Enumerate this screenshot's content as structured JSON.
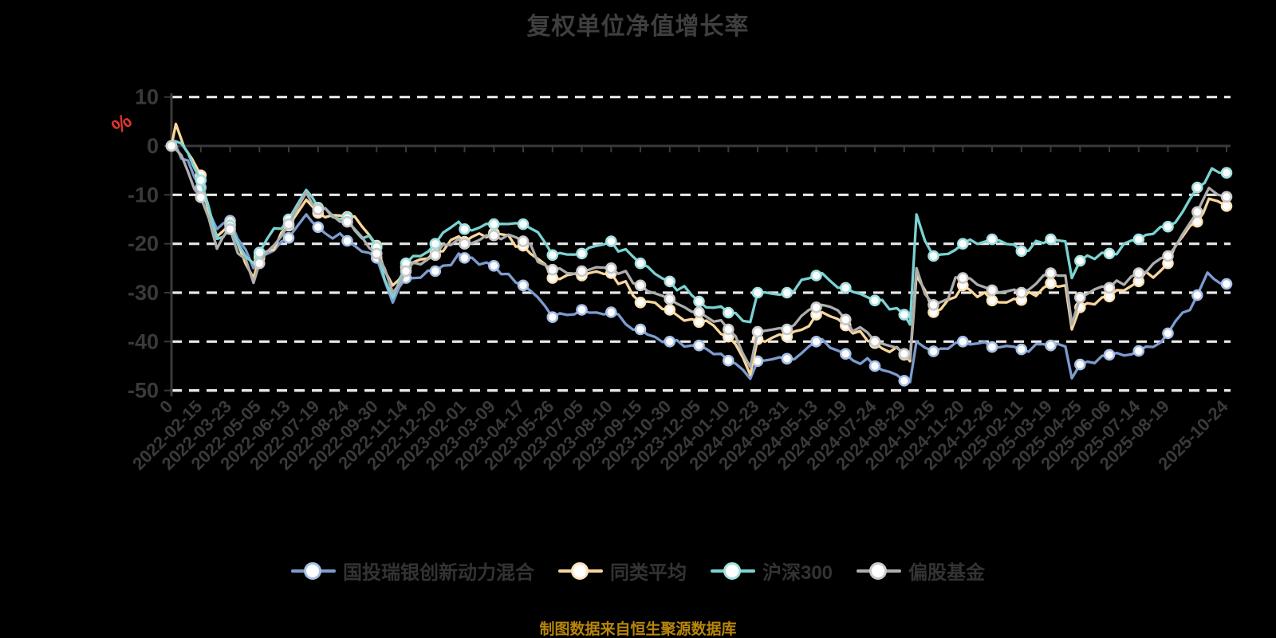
{
  "title": "复权单位净值增长率",
  "footer": "制图数据来自恒生聚源数据库",
  "colors": {
    "background": "#000000",
    "title_text": "#3f3f3f",
    "legend_text": "#333333",
    "footer_text": "#b8860b",
    "axis_text": "#3a3a3a",
    "unit_label": "#e5342e"
  },
  "chart_data": {
    "type": "line",
    "title": "复权单位净值增长率",
    "ylabel": "%",
    "ylim": [
      -50,
      10
    ],
    "y_ticks": [
      10,
      0,
      -10,
      -20,
      -30,
      -40,
      -50
    ],
    "grid": "horizontal dashed",
    "legend_position": "bottom",
    "colors": {
      "grid": "#e8e8e8",
      "axis": "#3a3a3a"
    },
    "x_labels": [
      "0",
      "2022-02-15",
      "2022-03-23",
      "2022-05-05",
      "2022-06-13",
      "2022-07-19",
      "2022-08-24",
      "2022-09-30",
      "2022-11-14",
      "2022-12-20",
      "2023-02-01",
      "2023-03-09",
      "2023-04-17",
      "2023-05-26",
      "2023-07-05",
      "2023-08-10",
      "2023-09-15",
      "2023-10-30",
      "2023-12-05",
      "2024-01-10",
      "2024-02-23",
      "2024-03-31",
      "2024-05-13",
      "2024-06-19",
      "2024-07-24",
      "2024-08-29",
      "2024-10-15",
      "2024-11-20",
      "2024-12-26",
      "2025-02-11",
      "2025-03-19",
      "2025-04-25",
      "2025-06-06",
      "2025-07-14",
      "2025-08-19",
      "",
      "2025-10-24"
    ],
    "series": [
      {
        "key": "fund",
        "name": "国投瑞银创新动力混合",
        "color": "#7e9bce",
        "marker_ring": "#a8c0e6",
        "values": [
          0,
          -8.5,
          -15.3,
          -22.3,
          -18.8,
          -16.6,
          -19.4,
          -22.9,
          -27,
          -25.6,
          -22.9,
          -24.5,
          -28.5,
          -35,
          -33.5,
          -34,
          -37.5,
          -40,
          -40.8,
          -43.9,
          -44,
          -43.5,
          -40,
          -42.5,
          -45,
          -48,
          -42,
          -40,
          -41.1,
          -41.6,
          -40.8,
          -44.7,
          -42.7,
          -41.9,
          -38.3,
          -30.5,
          -28.2
        ],
        "extra_points": [
          [
            0.12,
            0.5
          ],
          [
            1.55,
            -17
          ],
          [
            2.8,
            -25
          ],
          [
            4.6,
            -14
          ],
          [
            7.55,
            -32
          ],
          [
            9.8,
            -22
          ],
          [
            19.75,
            -47.6
          ],
          [
            22.2,
            -39.5
          ],
          [
            25.2,
            -48.3
          ],
          [
            25.42,
            -40
          ],
          [
            30.5,
            -41
          ],
          [
            30.72,
            -47.5
          ],
          [
            35.35,
            -25.9
          ]
        ]
      },
      {
        "key": "peer-average",
        "name": "同类平均",
        "color": "#f8d69b",
        "marker_ring": "#fbe3bb",
        "values": [
          0,
          -6,
          -16,
          -22.9,
          -16.3,
          -13.7,
          -14.5,
          -20.4,
          -24.8,
          -21.5,
          -19.6,
          -17.8,
          -20.4,
          -27,
          -26.5,
          -26,
          -32,
          -33.5,
          -36,
          -39,
          -39.5,
          -39,
          -34.5,
          -36.7,
          -40.3,
          -42.7,
          -34,
          -28.5,
          -31.6,
          -31.5,
          -28.1,
          -33,
          -30.8,
          -27.7,
          -24,
          -15.5,
          -12.3
        ],
        "extra_points": [
          [
            0.15,
            4.5
          ],
          [
            1.55,
            -18.5
          ],
          [
            2.8,
            -27
          ],
          [
            4.6,
            -11
          ],
          [
            7.55,
            -28.5
          ],
          [
            9.8,
            -18.5
          ],
          [
            19.75,
            -46.8
          ],
          [
            22.2,
            -34
          ],
          [
            25.2,
            -44
          ],
          [
            25.42,
            -26.5
          ],
          [
            30.5,
            -28.5
          ],
          [
            30.72,
            -37.5
          ],
          [
            35.4,
            -10.8
          ]
        ]
      },
      {
        "key": "csi300",
        "name": "沪深300",
        "color": "#7bd2d2",
        "marker_ring": "#a2e0e0",
        "values": [
          0,
          -7,
          -16.3,
          -21.8,
          -15,
          -12.6,
          -14.7,
          -20.7,
          -24,
          -20,
          -17,
          -16,
          -16,
          -22.3,
          -22,
          -19.5,
          -24,
          -27.7,
          -31.8,
          -34.1,
          -30,
          -30,
          -26.5,
          -29,
          -31.6,
          -34.5,
          -22.5,
          -20,
          -19.1,
          -21.5,
          -19.1,
          -23.5,
          -22,
          -19.1,
          -16.5,
          -8.5,
          -5.5
        ],
        "extra_points": [
          [
            0.12,
            1
          ],
          [
            1.55,
            -19
          ],
          [
            2.8,
            -24
          ],
          [
            4.6,
            -9
          ],
          [
            7.55,
            -31
          ],
          [
            9.8,
            -15.5
          ],
          [
            19.75,
            -36
          ],
          [
            22.2,
            -26
          ],
          [
            25.2,
            -36.5
          ],
          [
            25.42,
            -14
          ],
          [
            30.5,
            -19.5
          ],
          [
            30.72,
            -27
          ],
          [
            35.5,
            -4.6
          ]
        ]
      },
      {
        "key": "equity-fund",
        "name": "偏股基金",
        "color": "#aeaeae",
        "marker_ring": "#c9c9c9",
        "values": [
          0,
          -10.5,
          -17,
          -24,
          -16,
          -13,
          -15.5,
          -22,
          -25.6,
          -22.3,
          -20,
          -18.3,
          -19.5,
          -25.3,
          -25.6,
          -25,
          -28.5,
          -31.3,
          -34,
          -37.5,
          -38,
          -37.5,
          -33,
          -35.5,
          -40,
          -42.5,
          -32.5,
          -27,
          -29.5,
          -30,
          -26,
          -31,
          -29,
          -26,
          -22.5,
          -13.5,
          -10.4
        ],
        "extra_points": [
          [
            0.12,
            -0.5
          ],
          [
            1.55,
            -21
          ],
          [
            2.8,
            -28
          ],
          [
            4.6,
            -9.5
          ],
          [
            7.55,
            -30
          ],
          [
            9.8,
            -19
          ],
          [
            19.75,
            -45.2
          ],
          [
            22.2,
            -32.5
          ],
          [
            25.2,
            -43.5
          ],
          [
            25.42,
            -25
          ],
          [
            30.5,
            -26.5
          ],
          [
            30.72,
            -36.5
          ],
          [
            35.4,
            -8.6
          ]
        ]
      }
    ]
  }
}
